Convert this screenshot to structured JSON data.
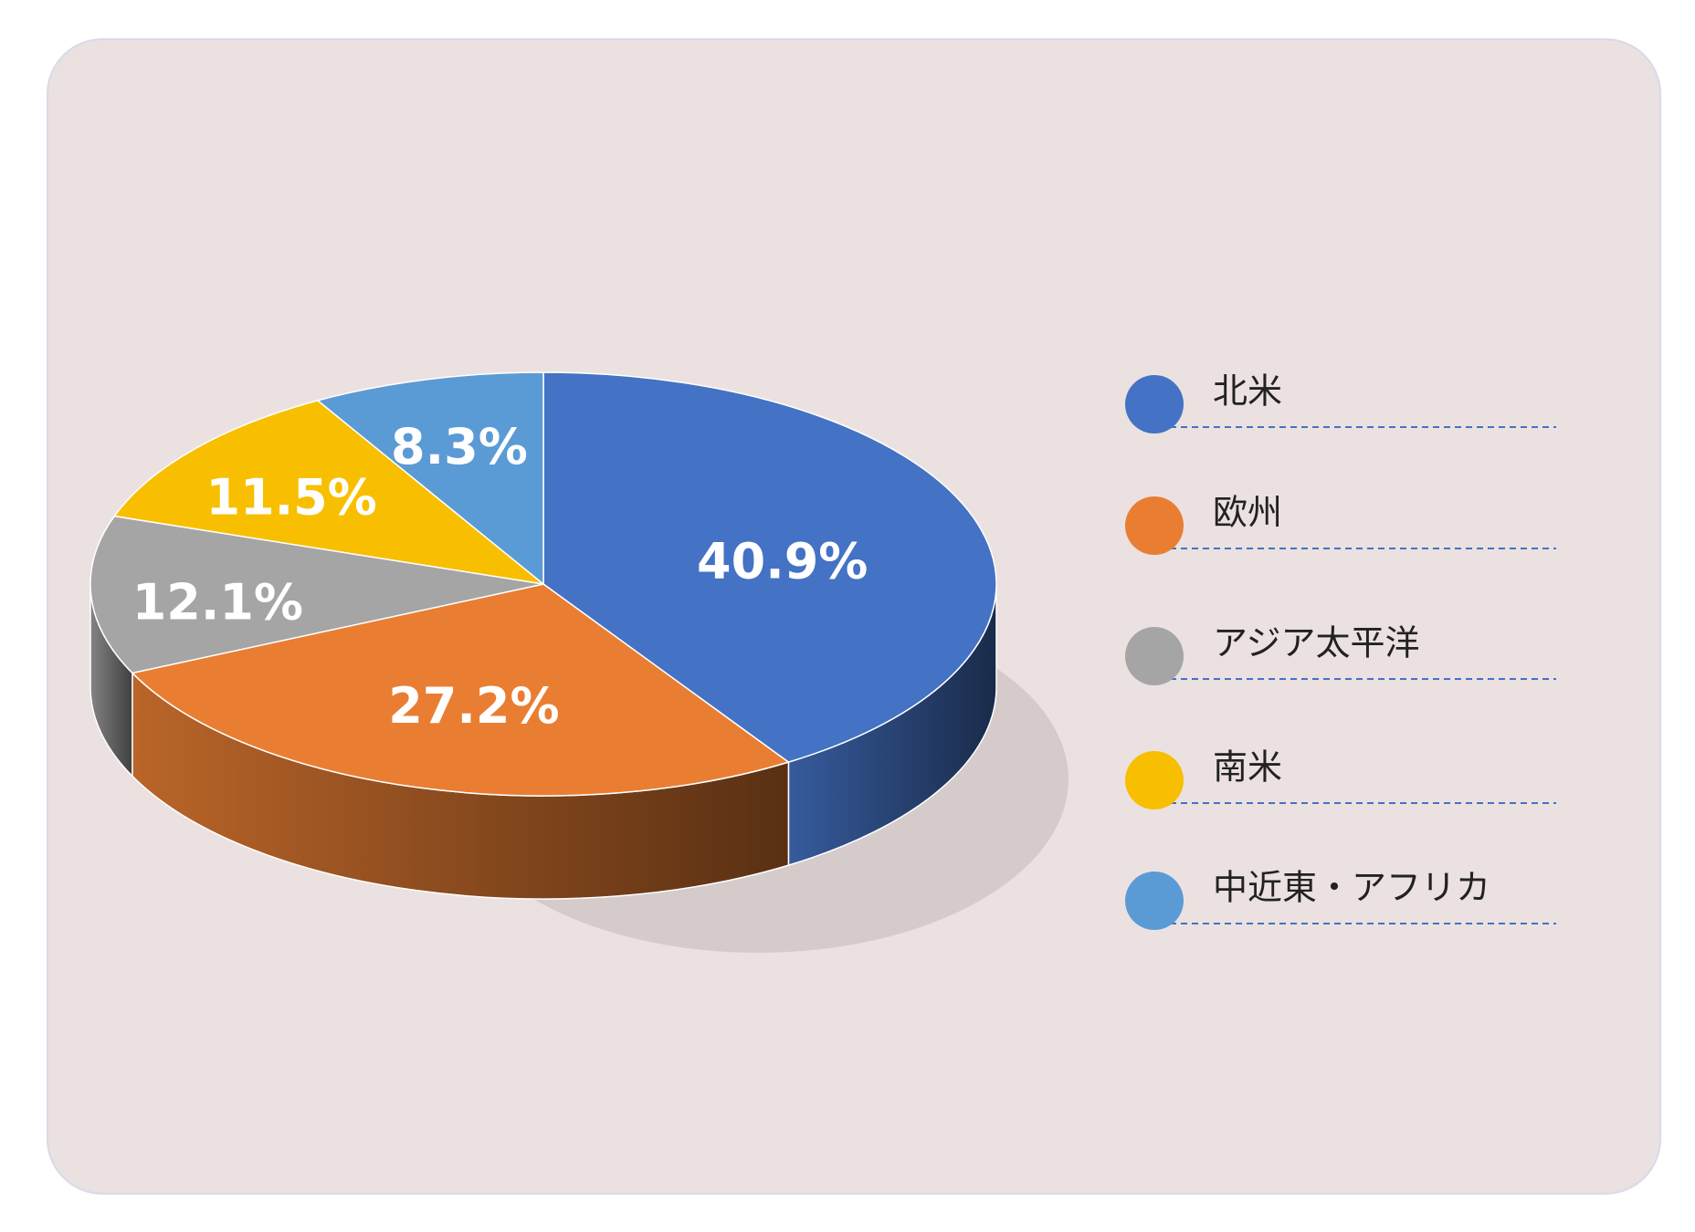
{
  "chart_data": {
    "type": "pie",
    "categories": [
      "北米",
      "欧州",
      "アジア太平洋",
      "南米",
      "中近東・アフリカ"
    ],
    "values": [
      40.9,
      27.2,
      12.1,
      11.5,
      8.3
    ],
    "value_labels": [
      "40.9%",
      "27.2%",
      "12.1%",
      "11.5%",
      "8.3%"
    ],
    "colors": [
      "#4472c4",
      "#e97e33",
      "#a5a5a5",
      "#f8bf00",
      "#5b9bd5"
    ]
  }
}
